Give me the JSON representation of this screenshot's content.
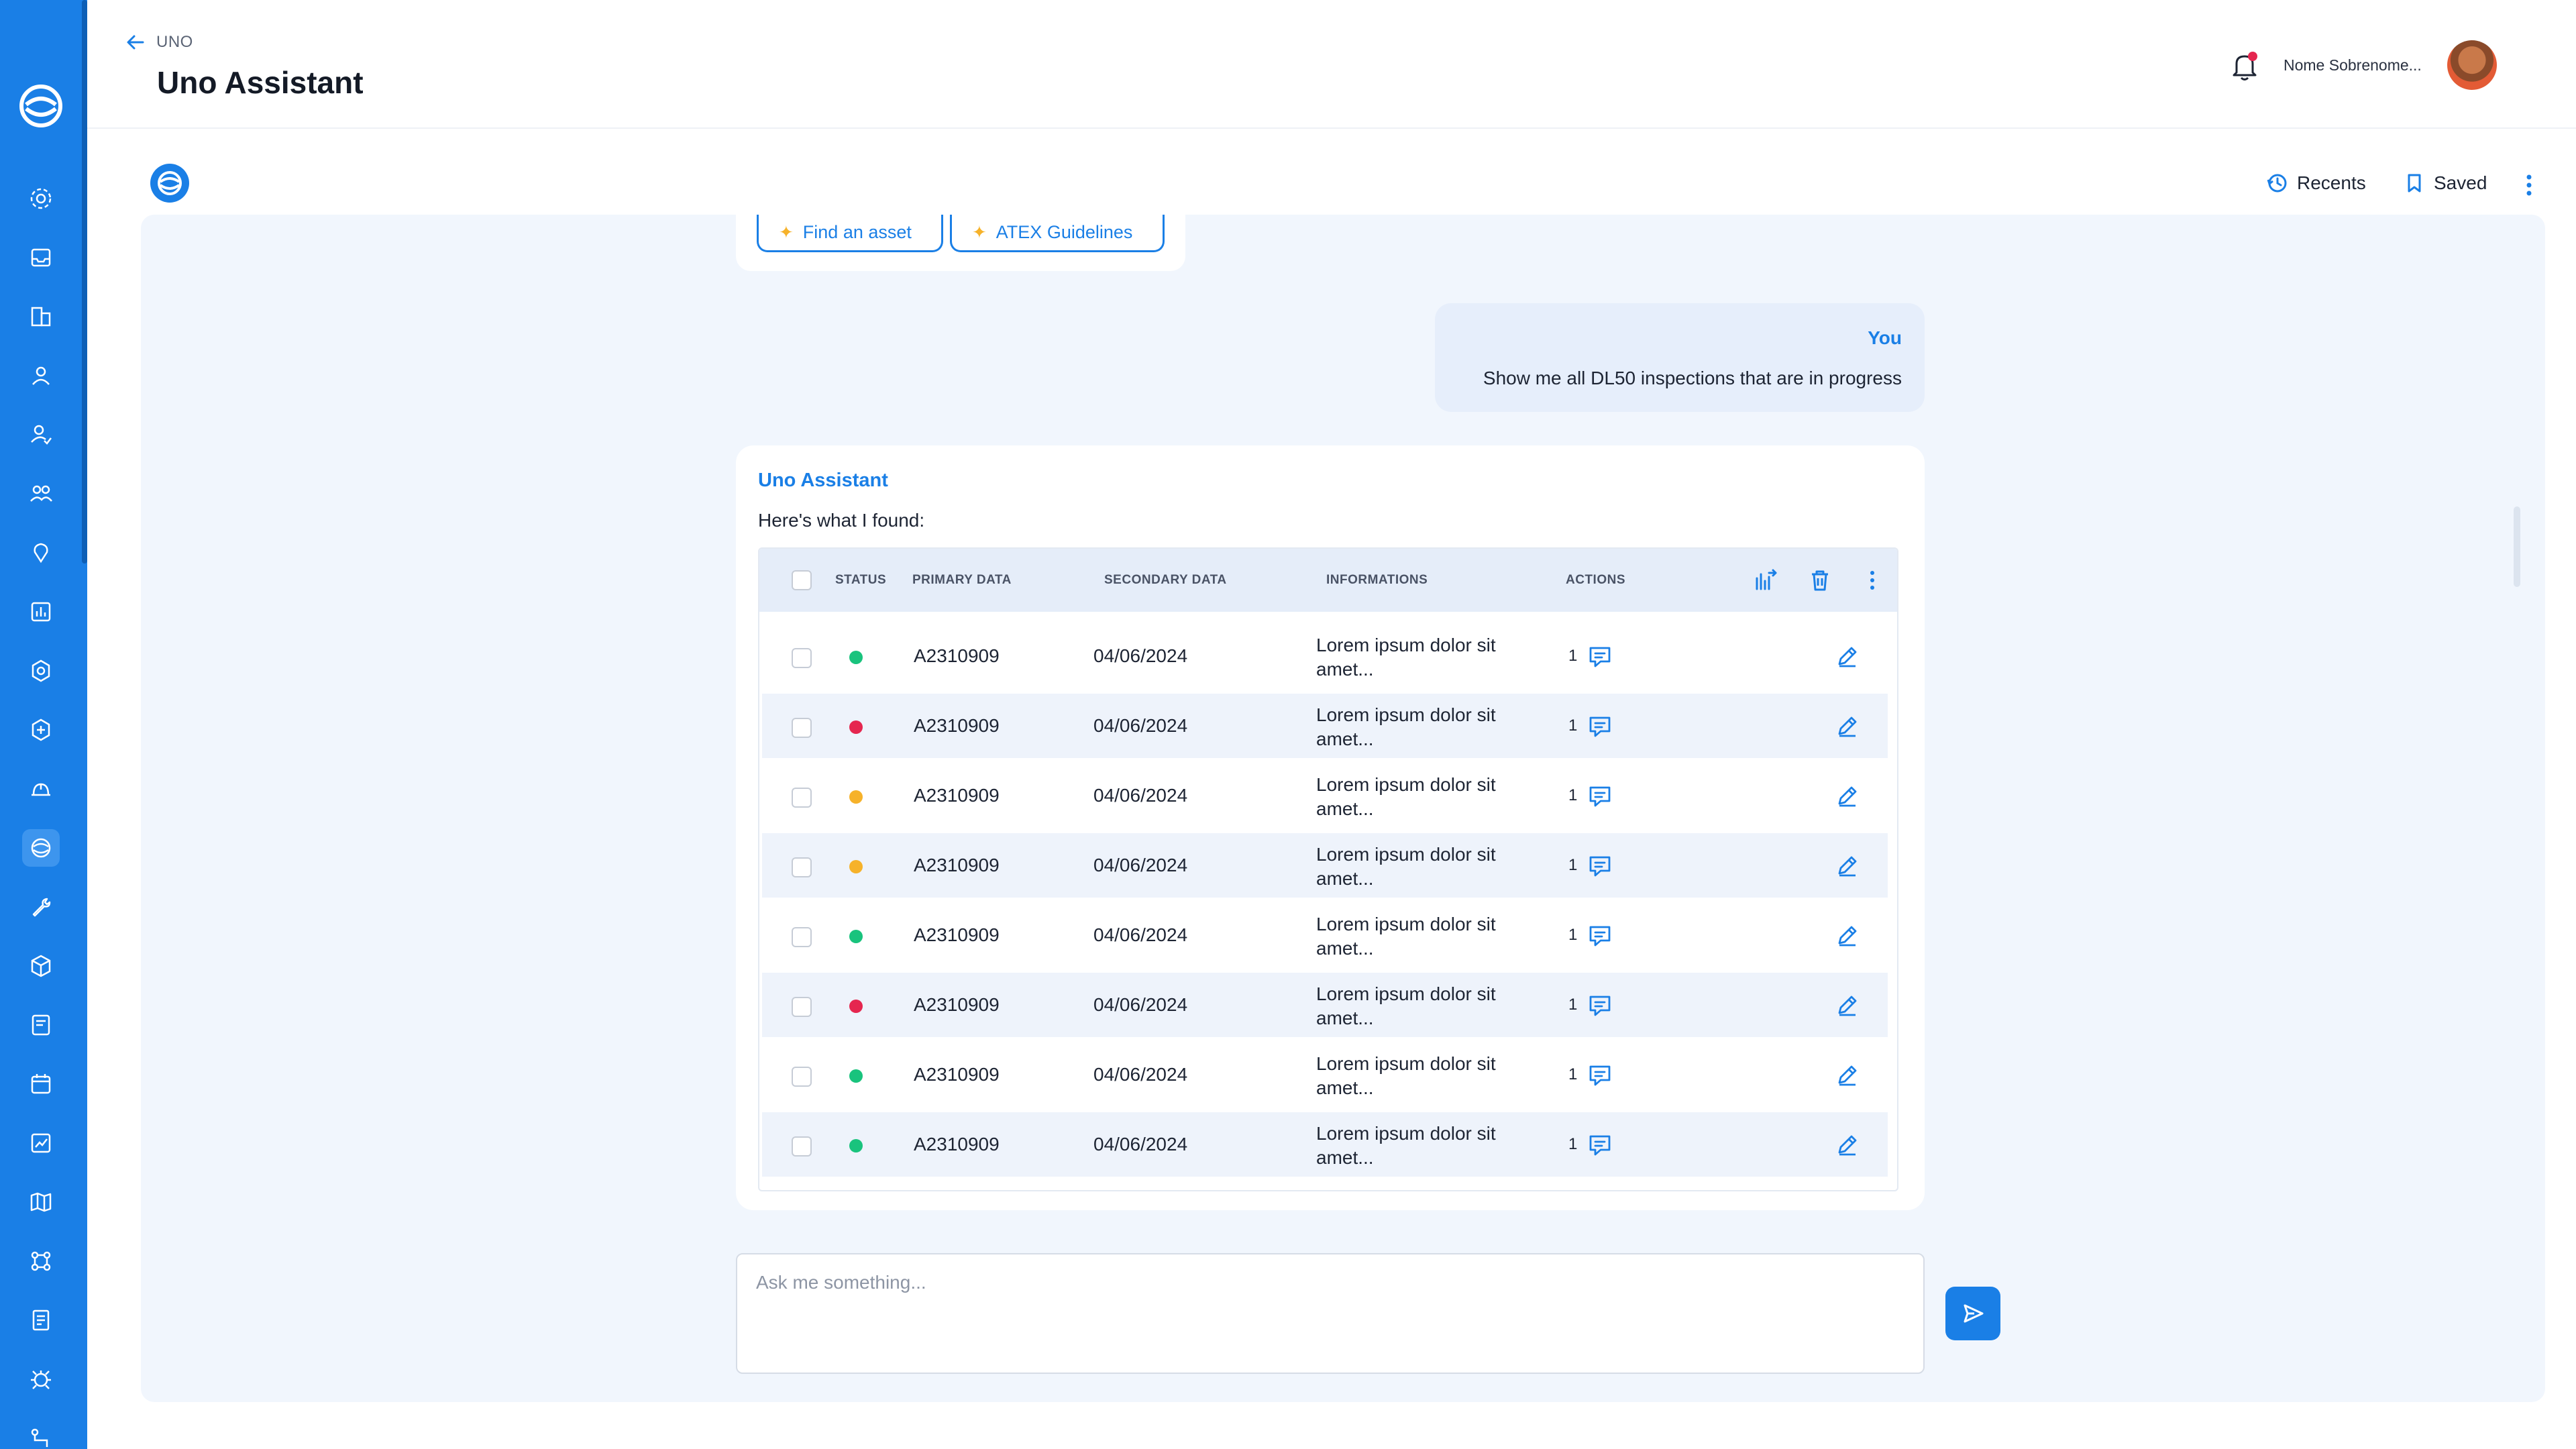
{
  "header": {
    "breadcrumb": "UNO",
    "title": "Uno Assistant",
    "user_name": "Nome Sobrenome..."
  },
  "sidebar": {
    "items": [
      {
        "icon": "settings-icon"
      },
      {
        "icon": "inbox-icon"
      },
      {
        "icon": "buildings-icon"
      },
      {
        "icon": "user-icon"
      },
      {
        "icon": "user-check-icon"
      },
      {
        "icon": "users-icon"
      },
      {
        "icon": "location-pin-icon"
      },
      {
        "icon": "chart-bar-icon"
      },
      {
        "icon": "cog-badge-icon"
      },
      {
        "icon": "gear-asset-icon"
      },
      {
        "icon": "helmet-icon"
      },
      {
        "icon": "uno-assistant-icon",
        "active": true
      },
      {
        "icon": "wrench-icon"
      },
      {
        "icon": "box-icon"
      },
      {
        "icon": "document-edit-icon"
      },
      {
        "icon": "calendar-icon"
      },
      {
        "icon": "trend-chart-icon"
      },
      {
        "icon": "map-icon"
      },
      {
        "icon": "network-icon"
      },
      {
        "icon": "report-icon"
      },
      {
        "icon": "bug-icon"
      },
      {
        "icon": "route-icon"
      }
    ]
  },
  "toolbar": {
    "recents_label": "Recents",
    "saved_label": "Saved"
  },
  "chat": {
    "chips": [
      {
        "label": "Find an asset"
      },
      {
        "label": "ATEX Guidelines"
      }
    ],
    "user_message": {
      "author": "You",
      "text": "Show me all DL50 inspections that are in progress"
    },
    "assistant_message": {
      "author": "Uno Assistant",
      "intro": "Here's what I found:"
    },
    "input_placeholder": "Ask me something..."
  },
  "table": {
    "columns": [
      "STATUS",
      "PRIMARY DATA",
      "SECONDARY DATA",
      "INFORMATIONS",
      "ACTIONS"
    ],
    "rows": [
      {
        "status": "green",
        "primary": "A2310909",
        "secondary": "04/06/2024",
        "info_line1": "Lorem ipsum dolor sit",
        "info_line2": "amet...",
        "count": "1"
      },
      {
        "status": "red",
        "primary": "A2310909",
        "secondary": "04/06/2024",
        "info_line1": "Lorem ipsum dolor sit",
        "info_line2": "amet...",
        "count": "1"
      },
      {
        "status": "yellow",
        "primary": "A2310909",
        "secondary": "04/06/2024",
        "info_line1": "Lorem ipsum dolor sit",
        "info_line2": "amet...",
        "count": "1"
      },
      {
        "status": "yellow",
        "primary": "A2310909",
        "secondary": "04/06/2024",
        "info_line1": "Lorem ipsum dolor sit",
        "info_line2": "amet...",
        "count": "1"
      },
      {
        "status": "green",
        "primary": "A2310909",
        "secondary": "04/06/2024",
        "info_line1": "Lorem ipsum dolor sit",
        "info_line2": "amet...",
        "count": "1"
      },
      {
        "status": "red",
        "primary": "A2310909",
        "secondary": "04/06/2024",
        "info_line1": "Lorem ipsum dolor sit",
        "info_line2": "amet...",
        "count": "1"
      },
      {
        "status": "green",
        "primary": "A2310909",
        "secondary": "04/06/2024",
        "info_line1": "Lorem ipsum dolor sit",
        "info_line2": "amet...",
        "count": "1"
      },
      {
        "status": "green",
        "primary": "A2310909",
        "secondary": "04/06/2024",
        "info_line1": "Lorem ipsum dolor sit",
        "info_line2": "amet...",
        "count": "1"
      }
    ]
  },
  "colors": {
    "brand": "#1a7fe6",
    "status_green": "#19c37d",
    "status_red": "#e5264f",
    "status_yellow": "#f6b22a"
  }
}
